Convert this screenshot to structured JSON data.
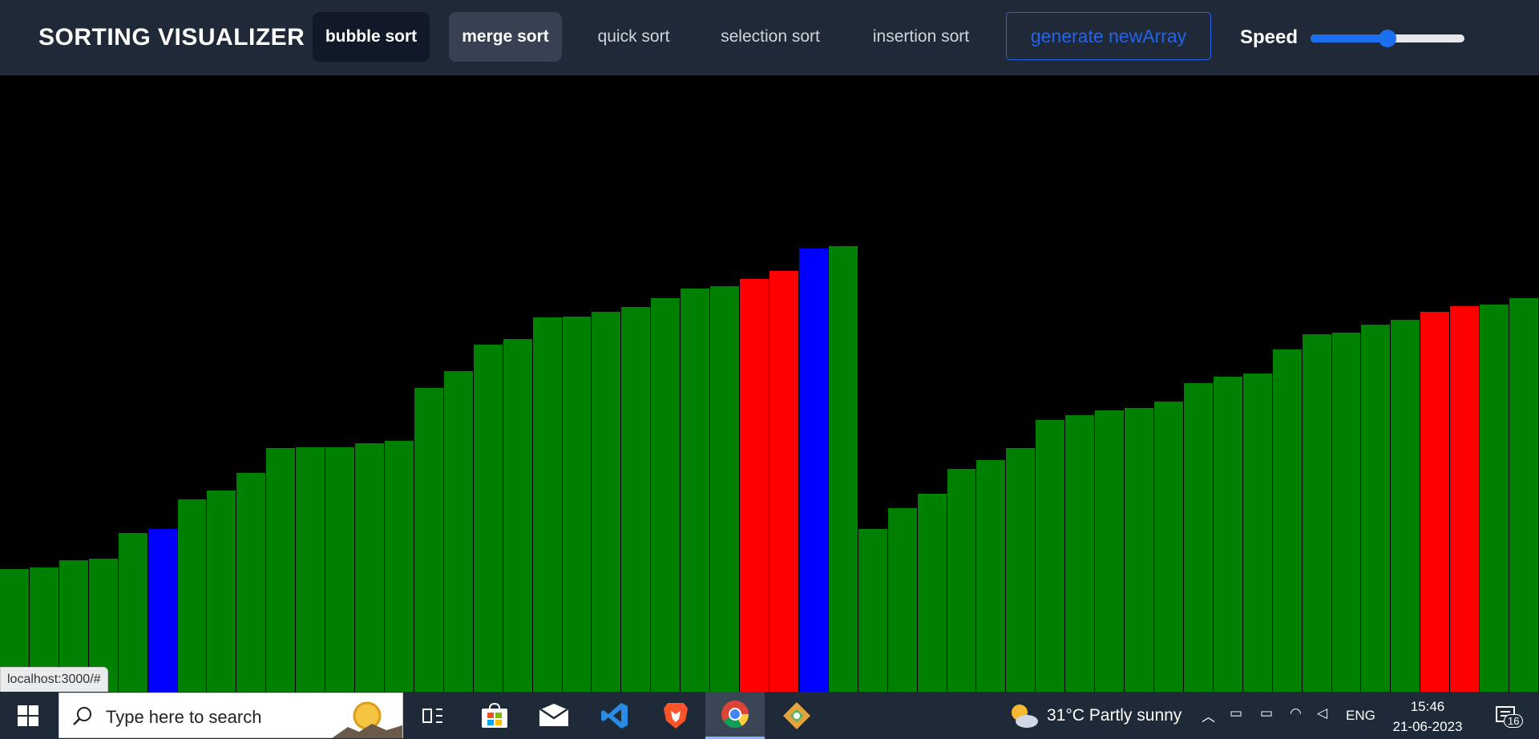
{
  "navbar": {
    "brand": "SORTING VISUALIZER",
    "algorithms": [
      {
        "label": "bubble sort",
        "state": "active"
      },
      {
        "label": "merge sort",
        "state": "hover"
      },
      {
        "label": "quick sort",
        "state": "normal"
      },
      {
        "label": "selection sort",
        "state": "normal"
      },
      {
        "label": "insertion sort",
        "state": "normal"
      }
    ],
    "generate_label": "generate newArray",
    "speed_label": "Speed",
    "speed_value": 0.5
  },
  "colors": {
    "navbar_bg": "#1f2937",
    "bar_default": "#008000",
    "bar_compare": "#ff0000",
    "bar_pivot": "#0000ff",
    "accent": "#2563eb"
  },
  "chart_data": {
    "type": "bar",
    "values": [
      153,
      155,
      164,
      166,
      198,
      203,
      240,
      251,
      273,
      304,
      305,
      305,
      310,
      313,
      379,
      400,
      433,
      440,
      467,
      468,
      474,
      480,
      491,
      503,
      506,
      515,
      525,
      553,
      556,
      203,
      229,
      247,
      278,
      289,
      304,
      339,
      345,
      351,
      354,
      362,
      385,
      393,
      397,
      427,
      446,
      448,
      458,
      464,
      474,
      481,
      483,
      491
    ],
    "states": [
      "g",
      "g",
      "g",
      "g",
      "g",
      "b",
      "g",
      "g",
      "g",
      "g",
      "g",
      "g",
      "g",
      "g",
      "g",
      "g",
      "g",
      "g",
      "g",
      "g",
      "g",
      "g",
      "g",
      "g",
      "g",
      "r",
      "r",
      "b",
      "g",
      "g",
      "g",
      "g",
      "g",
      "g",
      "g",
      "g",
      "g",
      "g",
      "g",
      "g",
      "g",
      "g",
      "g",
      "g",
      "g",
      "g",
      "g",
      "g",
      "r",
      "r",
      "g",
      "g"
    ],
    "ymax": 769
  },
  "status_url": "localhost:3000/#",
  "taskbar": {
    "search_placeholder": "Type here to search",
    "weather": "31°C  Partly sunny",
    "language": "ENG",
    "time": "15:46",
    "date": "21-06-2023",
    "notification_count": "16"
  }
}
